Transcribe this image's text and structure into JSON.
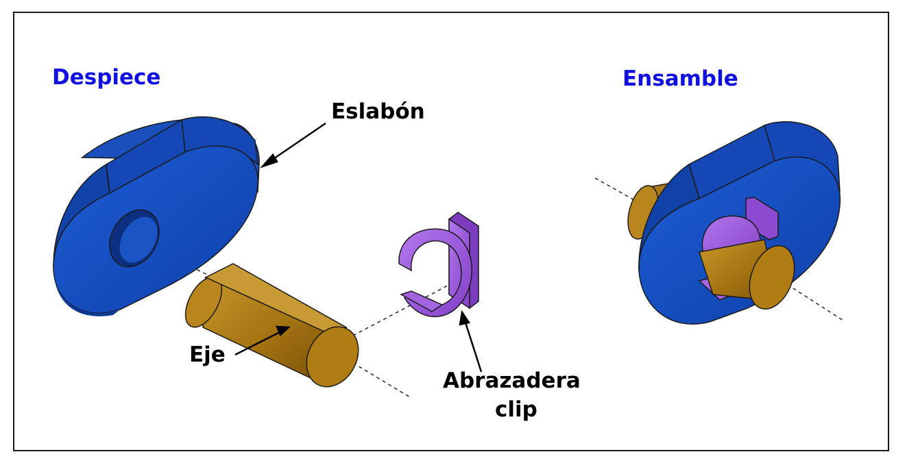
{
  "headings": {
    "exploded": "Despiece",
    "assembled": "Ensamble"
  },
  "labels": {
    "link": "Eslabón",
    "shaft": "Eje",
    "clip_line1": "Abrazadera",
    "clip_line2": "clip"
  },
  "colors": {
    "heading": "#1010e0",
    "link_part": "#1550c8",
    "shaft_part": "#b58318",
    "clip_part": "#9b55d8",
    "outline": "#1a1a1a"
  }
}
